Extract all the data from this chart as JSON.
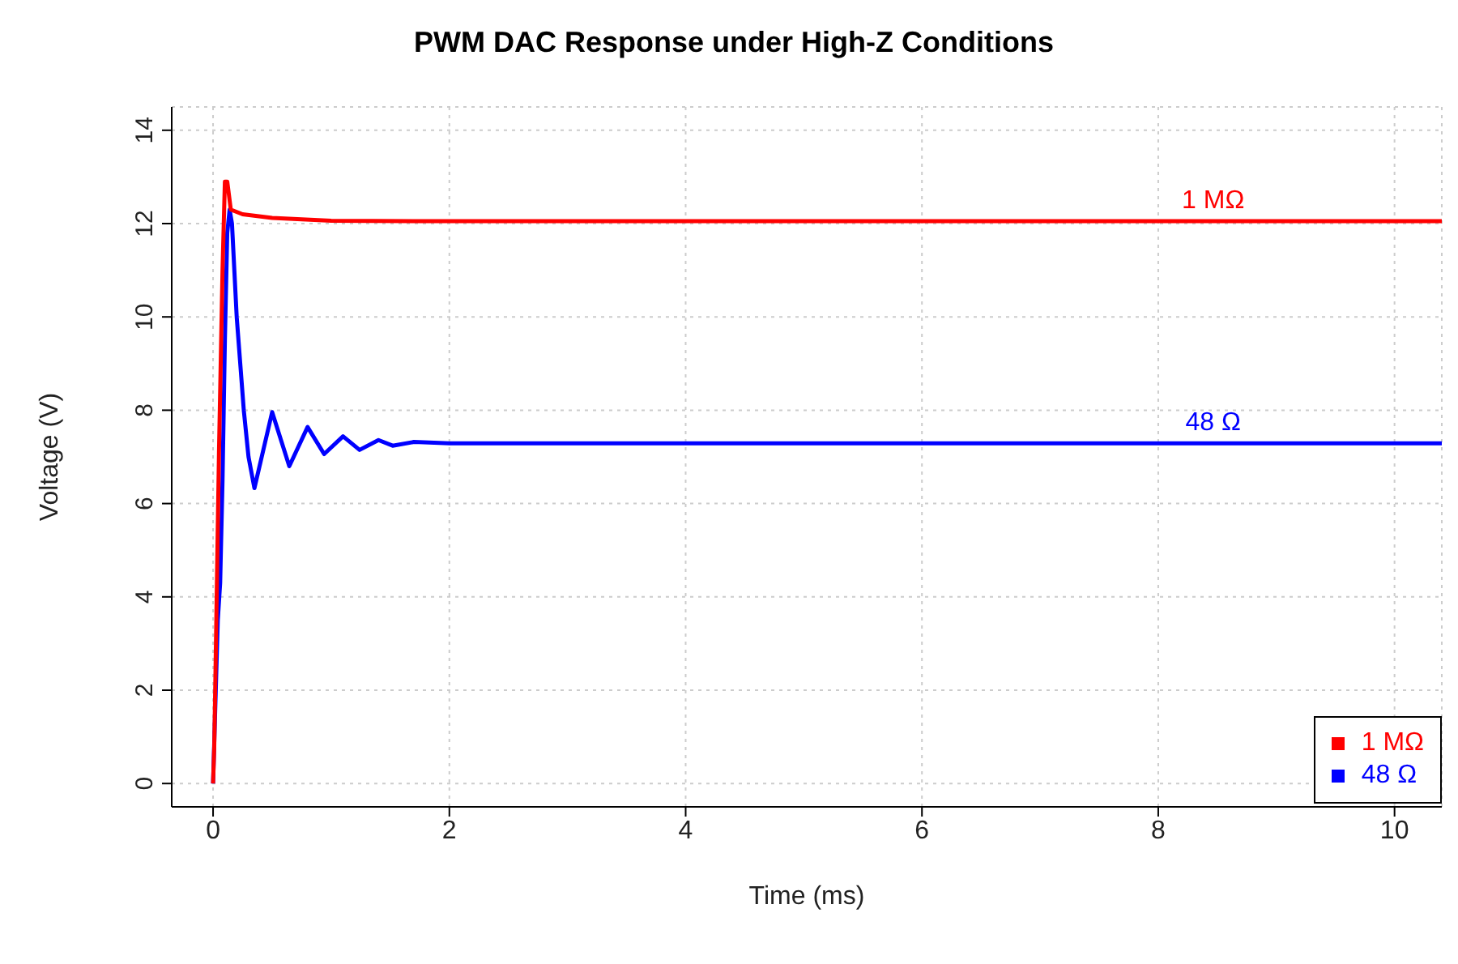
{
  "chart_data": {
    "type": "line",
    "title": "PWM DAC Response under High-Z Conditions",
    "xlabel": "Time (ms)",
    "ylabel": "Voltage (V)",
    "xlim": [
      -0.35,
      10.4
    ],
    "xticks": [
      0,
      2,
      4,
      6,
      8,
      10
    ],
    "ylim": [
      -0.5,
      14.5
    ],
    "yticks": [
      0,
      2,
      4,
      6,
      8,
      10,
      12,
      14
    ],
    "grid": true,
    "legend": "bottom right",
    "marker": "none",
    "line_style": "solid",
    "series": [
      {
        "name": "1 MΩ",
        "color": "#ff0000",
        "x": [
          0,
          0.01,
          0.02,
          0.05,
          0.08,
          0.1,
          0.12,
          0.15,
          0.25,
          0.5,
          1,
          2,
          10.4
        ],
        "values": [
          0,
          0.8,
          2.3,
          7.1,
          11,
          12.9,
          12.9,
          12.3,
          12.2,
          12.12,
          12.06,
          12.05,
          12.05
        ]
      },
      {
        "name": "48 Ω",
        "color": "#0000ff",
        "x": [
          0,
          0.01,
          0.02,
          0.04,
          0.06,
          0.08,
          0.1,
          0.12,
          0.14,
          0.16,
          0.2,
          0.26,
          0.3,
          0.35,
          0.5,
          0.645,
          0.8,
          0.94,
          1.1,
          1.24,
          1.4,
          1.52,
          1.7,
          2,
          10.4
        ],
        "values": [
          0,
          null,
          null,
          3.5,
          4.3,
          6.5,
          9.5,
          11.8,
          12.3,
          12,
          10,
          8,
          7,
          6.33,
          7.96,
          6.8,
          7.64,
          7.06,
          7.44,
          7.15,
          7.36,
          7.24,
          7.32,
          7.29,
          7.29
        ]
      }
    ],
    "annotations": [
      "1 MΩ",
      "48 Ω"
    ]
  }
}
